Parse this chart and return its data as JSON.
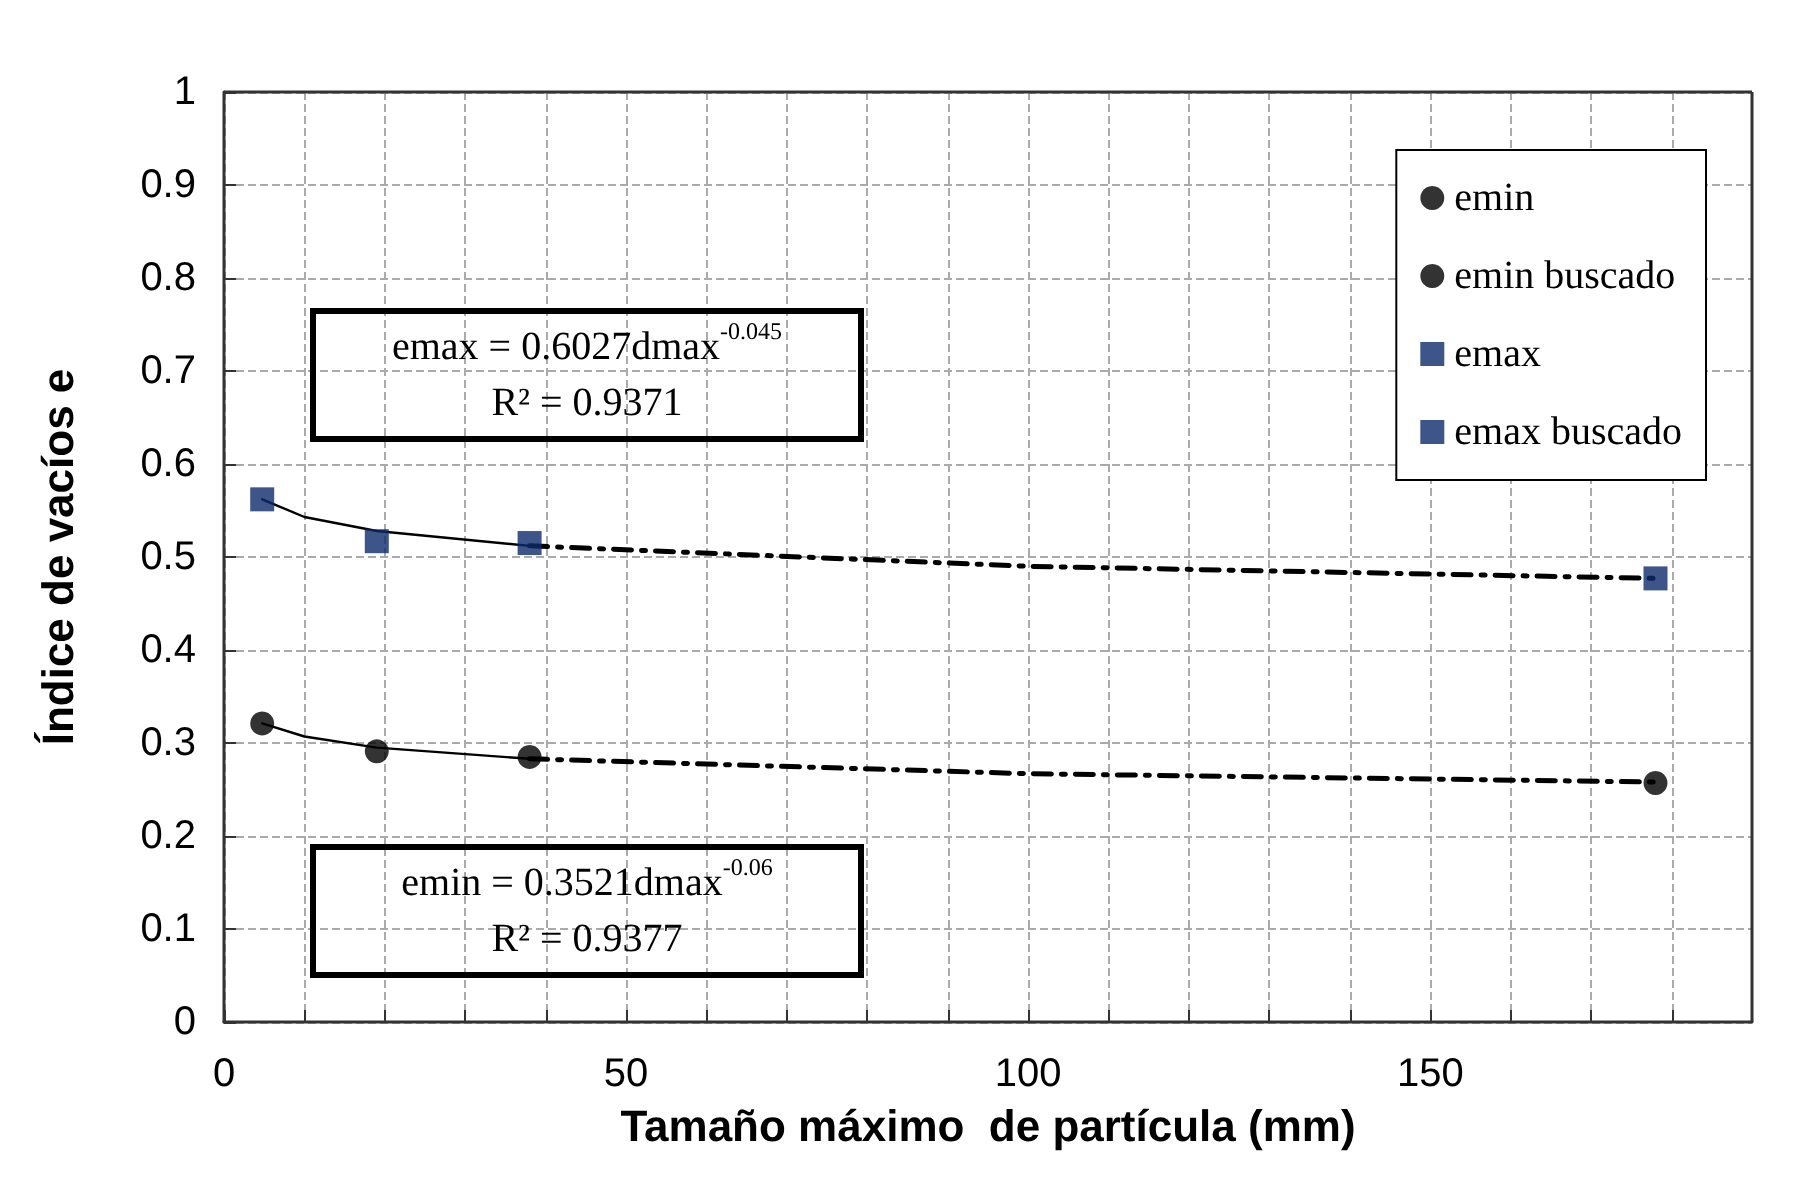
{
  "chart_data": {
    "type": "scatter",
    "xlabel": "Tamaño máximo  de partícula (mm)",
    "ylabel": "Índice de vacíos e",
    "xlim": [
      0,
      190
    ],
    "xticks": [
      0,
      {
        "value": 10,
        "label": null
      },
      {
        "value": 20,
        "label": null
      },
      {
        "value": 30,
        "label": null
      },
      {
        "value": 40,
        "label": null
      },
      50,
      {
        "value": 60,
        "label": null
      },
      {
        "value": 70,
        "label": null
      },
      {
        "value": 80,
        "label": null
      },
      {
        "value": 90,
        "label": null
      },
      100,
      {
        "value": 110,
        "label": null
      },
      {
        "value": 120,
        "label": null
      },
      {
        "value": 130,
        "label": null
      },
      {
        "value": 140,
        "label": null
      },
      150,
      {
        "value": 160,
        "label": null
      },
      {
        "value": 170,
        "label": null
      },
      {
        "value": 180,
        "label": null
      }
    ],
    "ylim": [
      0,
      1
    ],
    "yticks": [
      0,
      0.1,
      0.2,
      0.3,
      0.4,
      0.5,
      0.6,
      0.7,
      0.8,
      0.9,
      1
    ],
    "grid": true,
    "legend": "top right",
    "series": [
      {
        "name": "emin",
        "marker": "circle",
        "color": "#000000",
        "x": [
          4.75,
          19,
          38
        ],
        "values": [
          0.321,
          0.291,
          0.285
        ]
      },
      {
        "name": "emin buscado",
        "marker": "circle",
        "color": "#000000",
        "x": [
          178
        ],
        "values": [
          0.257
        ]
      },
      {
        "name": "emax",
        "marker": "square",
        "color": "#0d2a6b",
        "x": [
          4.75,
          19,
          38
        ],
        "values": [
          0.562,
          0.517,
          0.515
        ]
      },
      {
        "name": "emax buscado",
        "marker": "square",
        "color": "#0d2a6b",
        "x": [
          178
        ],
        "values": [
          0.477
        ]
      },
      {
        "type": "line",
        "line_style": "solid",
        "color": "#000000",
        "x": [
          4.75,
          10,
          19,
          38
        ],
        "values": [
          0.321,
          0.307,
          0.295,
          0.283
        ]
      },
      {
        "type": "line",
        "line_style": "dashed",
        "color": "#000000",
        "x": [
          38,
          100,
          178
        ],
        "values": [
          0.283,
          0.267,
          0.258
        ]
      },
      {
        "type": "line",
        "line_style": "solid",
        "color": "#000000",
        "x": [
          4.75,
          10,
          19,
          38
        ],
        "values": [
          0.562,
          0.543,
          0.528,
          0.512
        ]
      },
      {
        "type": "line",
        "line_style": "dashed",
        "color": "#000000",
        "x": [
          38,
          100,
          178
        ],
        "values": [
          0.512,
          0.49,
          0.477
        ]
      }
    ],
    "annotations": [
      "emax = 0.6027dmax$^{-0.045}$\nR² = 0.9371",
      "emin = 0.3521dmax$^{-0.06}$\nR² = 0.9377"
    ]
  }
}
